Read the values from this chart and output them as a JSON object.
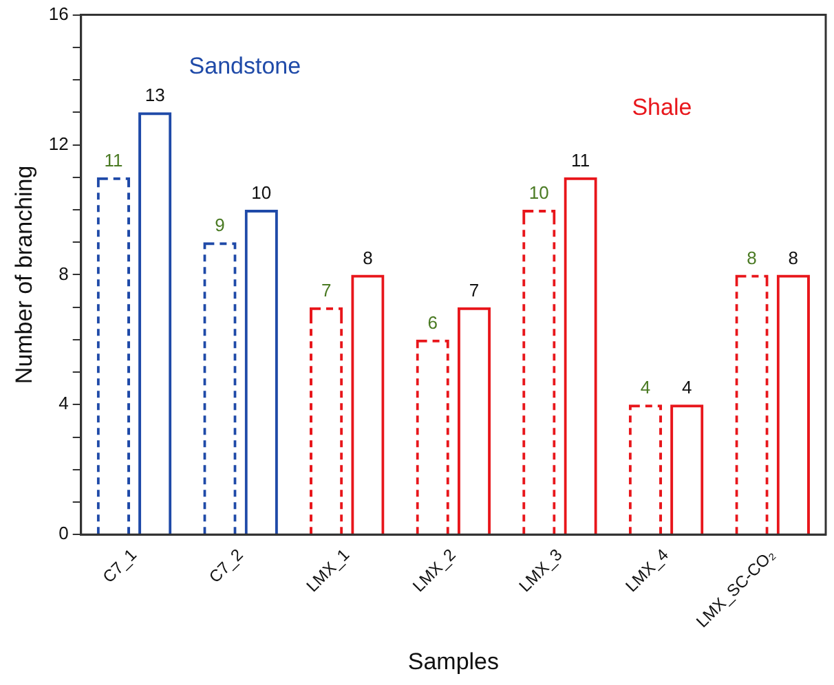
{
  "chart_data": {
    "type": "bar",
    "xlabel": "Samples",
    "ylabel": "Number of branching",
    "categories": [
      "C7_1",
      "C7_2",
      "LMX_1",
      "LMX_2",
      "LMX_3",
      "LMX_4",
      "LMX_SC-CO₂"
    ],
    "series": [
      {
        "colors": [
          "#1f4aa8",
          "#1f4aa8",
          "#e8161b",
          "#e8161b",
          "#e8161b",
          "#e8161b",
          "#e8161b"
        ],
        "line_style": "dashed",
        "values": [
          11,
          9,
          7,
          6,
          10,
          4,
          8
        ]
      },
      {
        "colors": [
          "#1f4aa8",
          "#1f4aa8",
          "#e8161b",
          "#e8161b",
          "#e8161b",
          "#e8161b",
          "#e8161b"
        ],
        "line_style": "solid",
        "values": [
          13,
          10,
          8,
          7,
          11,
          4,
          8
        ]
      }
    ],
    "ylim": [
      0,
      16
    ],
    "yticks": [
      0,
      {
        "value": 1,
        "label": null
      },
      {
        "value": 2,
        "label": null
      },
      {
        "value": 3,
        "label": null
      },
      4,
      {
        "value": 5,
        "label": null
      },
      {
        "value": 6,
        "label": null
      },
      {
        "value": 7,
        "label": null
      },
      8,
      {
        "value": 9,
        "label": null
      },
      {
        "value": 10,
        "label": null
      },
      {
        "value": 11,
        "label": null
      },
      12,
      {
        "value": 13,
        "label": null
      },
      {
        "value": 14,
        "label": null
      },
      {
        "value": 15,
        "label": null
      },
      16
    ],
    "data_labels": true,
    "grid": false,
    "legend": false,
    "annotations": [
      "Sandstone",
      "Shale"
    ]
  }
}
